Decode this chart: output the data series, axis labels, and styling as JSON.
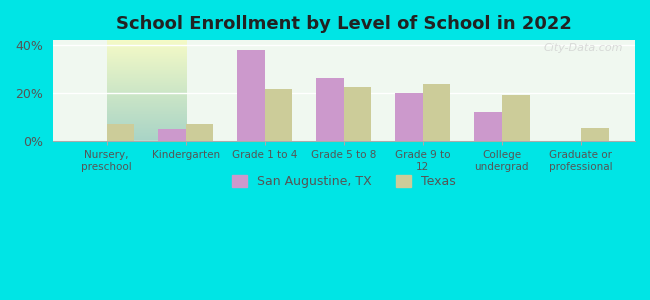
{
  "title": "School Enrollment by Level of School in 2022",
  "categories": [
    "Nursery,\npreschool",
    "Kindergarten",
    "Grade 1 to 4",
    "Grade 5 to 8",
    "Grade 9 to\n12",
    "College\nundergrad",
    "Graduate or\nprofessional"
  ],
  "san_augustine": [
    0.0,
    5.0,
    38.0,
    26.0,
    20.0,
    12.0,
    0.0
  ],
  "texas": [
    7.0,
    7.0,
    21.5,
    22.5,
    23.5,
    19.0,
    5.5
  ],
  "color_sa": "#cc99cc",
  "color_tx": "#cccc99",
  "background_outer": "#00e5e5",
  "background_plot": "#f0f8f0",
  "ylim": [
    0,
    42
  ],
  "yticks": [
    0,
    20,
    40
  ],
  "ytick_labels": [
    "0%",
    "20%",
    "40%"
  ],
  "legend_sa": "San Augustine, TX",
  "legend_tx": "Texas",
  "watermark": "City-Data.com"
}
